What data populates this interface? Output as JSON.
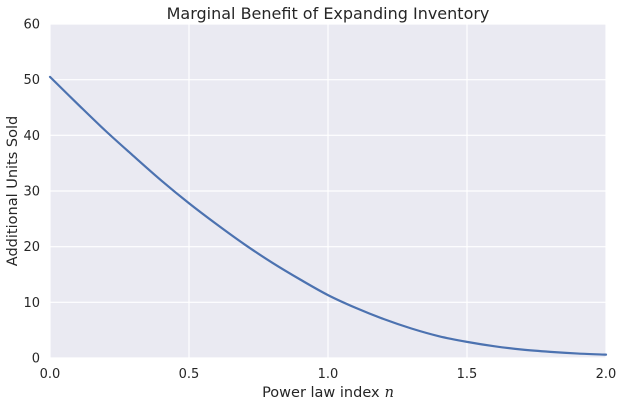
{
  "chart_data": {
    "type": "line",
    "title": "Marginal Benefit of Expanding Inventory",
    "xlabel": "Power law index",
    "xlabel_symbol": "n",
    "ylabel": "Additional Units Sold",
    "xlim": [
      0.0,
      2.0
    ],
    "ylim": [
      0,
      60
    ],
    "xticks": [
      0.0,
      0.5,
      1.0,
      1.5,
      2.0
    ],
    "xtick_labels": [
      "0.0",
      "0.5",
      "1.0",
      "1.5",
      "2.0"
    ],
    "yticks": [
      0,
      10,
      20,
      30,
      40,
      50,
      60
    ],
    "ytick_labels": [
      "0",
      "10",
      "20",
      "30",
      "40",
      "50",
      "60"
    ],
    "grid": true,
    "legend": "none",
    "colors": {
      "plot_background": "#EAEAF2",
      "grid": "#FFFFFF",
      "line": "#4C72B0",
      "text": "#262626"
    },
    "series": [
      {
        "x": [
          0.0,
          0.1,
          0.2,
          0.3,
          0.4,
          0.5,
          0.6,
          0.7,
          0.8,
          0.9,
          1.0,
          1.1,
          1.2,
          1.3,
          1.4,
          1.5,
          1.6,
          1.7,
          1.8,
          1.9,
          2.0
        ],
        "values": [
          50.5,
          45.6,
          40.8,
          36.3,
          31.9,
          27.8,
          24.0,
          20.4,
          17.1,
          14.1,
          11.3,
          9.0,
          7.0,
          5.3,
          3.9,
          2.9,
          2.1,
          1.5,
          1.1,
          0.8,
          0.6
        ]
      }
    ]
  }
}
